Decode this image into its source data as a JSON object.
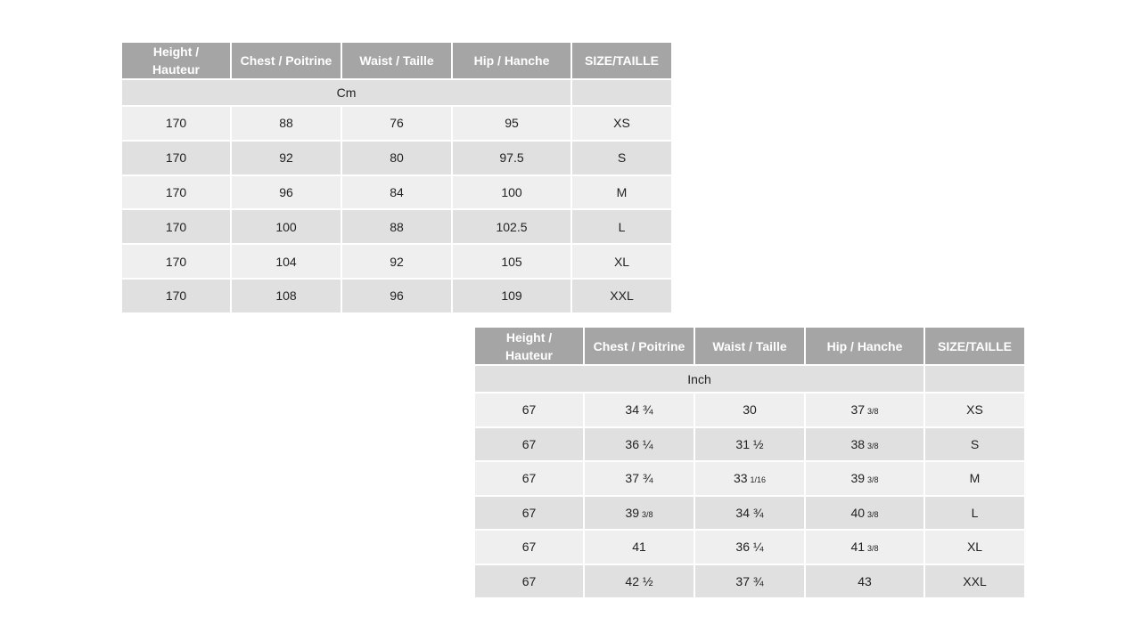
{
  "tables": [
    {
      "headers": [
        "Height / Hauteur",
        "Chest / Poitrine",
        "Waist / Taille",
        "Hip / Hanche",
        "SIZE/TAILLE"
      ],
      "unit": "Cm",
      "colors": {
        "header": "#a5a5a5",
        "row_light": "#efefef",
        "row_dark": "#e0e0e0"
      },
      "rows": [
        [
          {
            "main": "170"
          },
          {
            "main": "88"
          },
          {
            "main": "76"
          },
          {
            "main": "95"
          },
          {
            "main": "XS"
          }
        ],
        [
          {
            "main": "170"
          },
          {
            "main": "92"
          },
          {
            "main": "80"
          },
          {
            "main": "97.5"
          },
          {
            "main": "S"
          }
        ],
        [
          {
            "main": "170"
          },
          {
            "main": "96"
          },
          {
            "main": "84"
          },
          {
            "main": "100"
          },
          {
            "main": "M"
          }
        ],
        [
          {
            "main": "170"
          },
          {
            "main": "100"
          },
          {
            "main": "88"
          },
          {
            "main": "102.5"
          },
          {
            "main": "L"
          }
        ],
        [
          {
            "main": "170"
          },
          {
            "main": "104"
          },
          {
            "main": "92"
          },
          {
            "main": "105"
          },
          {
            "main": "XL"
          }
        ],
        [
          {
            "main": "170"
          },
          {
            "main": "108"
          },
          {
            "main": "96"
          },
          {
            "main": "109"
          },
          {
            "main": "XXL"
          }
        ]
      ]
    },
    {
      "headers": [
        "Height / Hauteur",
        "Chest / Poitrine",
        "Waist / Taille",
        "Hip / Hanche",
        "SIZE/TAILLE"
      ],
      "unit": "Inch",
      "colors": {
        "header": "#a5a5a5",
        "row_light": "#efefef",
        "row_dark": "#e0e0e0"
      },
      "rows": [
        [
          {
            "main": "67"
          },
          {
            "main": "34 ¾"
          },
          {
            "main": "30"
          },
          {
            "main": "37",
            "frac": "3/8"
          },
          {
            "main": "XS"
          }
        ],
        [
          {
            "main": "67"
          },
          {
            "main": "36 ¼"
          },
          {
            "main": "31 ½"
          },
          {
            "main": "38",
            "frac": "3/8"
          },
          {
            "main": "S"
          }
        ],
        [
          {
            "main": "67"
          },
          {
            "main": "37 ¾"
          },
          {
            "main": "33",
            "frac": "1/16"
          },
          {
            "main": "39",
            "frac": "3/8"
          },
          {
            "main": "M"
          }
        ],
        [
          {
            "main": "67"
          },
          {
            "main": "39",
            "frac": "3/8"
          },
          {
            "main": "34 ¾"
          },
          {
            "main": "40",
            "frac": "3/8"
          },
          {
            "main": "L"
          }
        ],
        [
          {
            "main": "67"
          },
          {
            "main": "41"
          },
          {
            "main": "36 ¼"
          },
          {
            "main": "41",
            "frac": "3/8"
          },
          {
            "main": "XL"
          }
        ],
        [
          {
            "main": "67"
          },
          {
            "main": "42 ½"
          },
          {
            "main": "37 ¾"
          },
          {
            "main": "43"
          },
          {
            "main": "XXL"
          }
        ]
      ]
    }
  ]
}
